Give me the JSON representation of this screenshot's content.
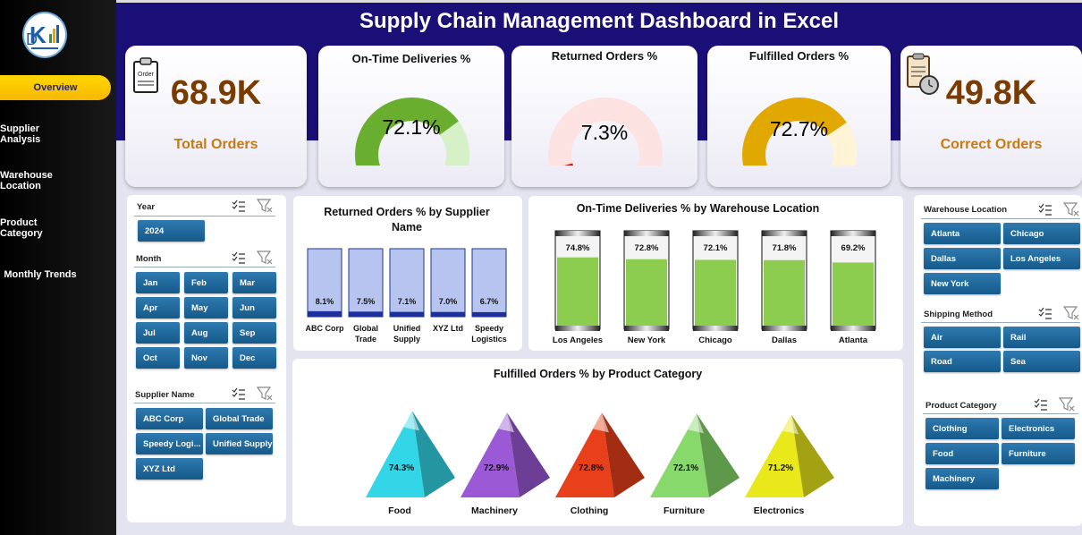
{
  "title": "Supply Chain Management Dashboard in Excel",
  "nav": [
    {
      "label": "Overview"
    },
    {
      "label": "Supplier Analysis"
    },
    {
      "label": "Warehouse Location"
    },
    {
      "label": "Product Category"
    },
    {
      "label": "Monthly Trends"
    }
  ],
  "kpis": {
    "total_orders": {
      "value": "68.9K",
      "label": "Total Orders"
    },
    "correct_orders": {
      "value": "49.8K",
      "label": "Correct Orders"
    },
    "on_time": {
      "title": "On-Time Deliveries %",
      "value": "72.1%",
      "fraction": 0.721,
      "color": "#6aae2f"
    },
    "returned": {
      "title": "Returned Orders %",
      "value": "7.3%",
      "fraction": 0.073,
      "color": "#d81414"
    },
    "fulfilled": {
      "title": "Fulfilled Orders %",
      "value": "72.7%",
      "fraction": 0.727,
      "color": "#e0a800"
    }
  },
  "slicers": {
    "year": {
      "title": "Year",
      "items": [
        "2024"
      ]
    },
    "month": {
      "title": "Month",
      "items": [
        "Jan",
        "Feb",
        "Mar",
        "Apr",
        "May",
        "Jun",
        "Jul",
        "Aug",
        "Sep",
        "Oct",
        "Nov",
        "Dec"
      ]
    },
    "supplier": {
      "title": "Supplier Name",
      "items": [
        "ABC Corp",
        "Global Trade",
        "Speedy Logi...",
        "Unified Supply",
        "XYZ Ltd"
      ]
    },
    "warehouse": {
      "title": "Warehouse Location",
      "items": [
        "Atlanta",
        "Chicago",
        "Dallas",
        "Los Angeles",
        "New York"
      ]
    },
    "shipping": {
      "title": "Shipping Method",
      "items": [
        "Air",
        "Rail",
        "Road",
        "Sea"
      ]
    },
    "category": {
      "title": "Product Category",
      "items": [
        "Clothing",
        "Electronics",
        "Food",
        "Furniture",
        "Machinery"
      ]
    }
  },
  "chart_data": [
    {
      "type": "bar",
      "title": "Returned Orders % by Supplier Name",
      "categories": [
        "ABC Corp",
        "Global Trade",
        "Unified Supply",
        "XYZ Ltd",
        "Speedy Logistics"
      ],
      "values": [
        8.1,
        7.5,
        7.1,
        7.0,
        6.7
      ],
      "labels": [
        "8.1%",
        "7.5%",
        "7.1%",
        "7.0%",
        "6.7%"
      ],
      "ylim": [
        0,
        100
      ]
    },
    {
      "type": "bar",
      "title": "On-Time Deliveries % by Warehouse Location",
      "categories": [
        "Los Angeles",
        "New York",
        "Chicago",
        "Dallas",
        "Atlanta"
      ],
      "values": [
        74.8,
        72.8,
        72.1,
        71.8,
        69.2
      ],
      "labels": [
        "74.8%",
        "72.8%",
        "72.1%",
        "71.8%",
        "69.2%"
      ],
      "ylim": [
        0,
        100
      ]
    },
    {
      "type": "bar",
      "title": "Fulfilled Orders % by Product Category",
      "categories": [
        "Food",
        "Machinery",
        "Clothing",
        "Furniture",
        "Electronics"
      ],
      "values": [
        74.3,
        72.9,
        72.8,
        72.1,
        71.2
      ],
      "labels": [
        "74.3%",
        "72.9%",
        "72.8%",
        "72.1%",
        "71.2%"
      ],
      "colors": [
        "#33d6e6",
        "#9b59d6",
        "#e8401a",
        "#86d96a",
        "#e8e81a"
      ]
    }
  ]
}
